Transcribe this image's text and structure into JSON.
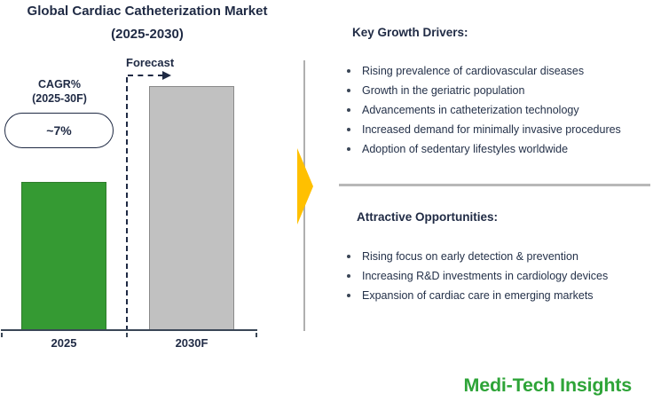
{
  "colors": {
    "navy_text": "#1F2A44",
    "bar_green": "#359A33",
    "bar_gray": "#C1C1C1",
    "axis_gray": "#3A4656",
    "arrow_yellow": "#FFC000",
    "divider_gray": "#B8B8B8",
    "logo_green": "#2EA438"
  },
  "chart_data": {
    "type": "bar",
    "title": "Global Cardiac Catheterization Market (2025-2030)",
    "categories": [
      "2025",
      "2030F"
    ],
    "values": [
      61,
      100
    ],
    "ylim": [
      0,
      100
    ],
    "xlabel": "",
    "ylabel": "",
    "gridlines": false,
    "value_labels_shown": false,
    "bar_colors": [
      "#359A33",
      "#C1C1C1"
    ],
    "bar_border_colors": [
      "#2E7D2B",
      "#8A8A8A"
    ],
    "annotations": {
      "forecast_label": "Forecast",
      "cagr_heading_line1": "CAGR%",
      "cagr_heading_line2": "(2025-30F)",
      "cagr_value": "~7%"
    }
  },
  "left_panel": {
    "title_line1": "Global Cardiac Catheterization Market",
    "title_line2": "(2025-2030)"
  },
  "right_panel": {
    "drivers": {
      "heading": "Key Growth Drivers:",
      "items": [
        "Rising prevalence of cardiovascular diseases",
        "Growth in the geriatric population",
        "Advancements in catheterization technology",
        "Increased demand for minimally invasive procedures",
        "Adoption of sedentary lifestyles worldwide"
      ]
    },
    "opportunities": {
      "heading": "Attractive Opportunities:",
      "items": [
        "Rising focus on early detection & prevention",
        "Increasing R&D investments in cardiology devices",
        "Expansion of cardiac care in emerging markets"
      ]
    }
  },
  "footer": {
    "logo_text": "Medi-Tech Insights"
  }
}
